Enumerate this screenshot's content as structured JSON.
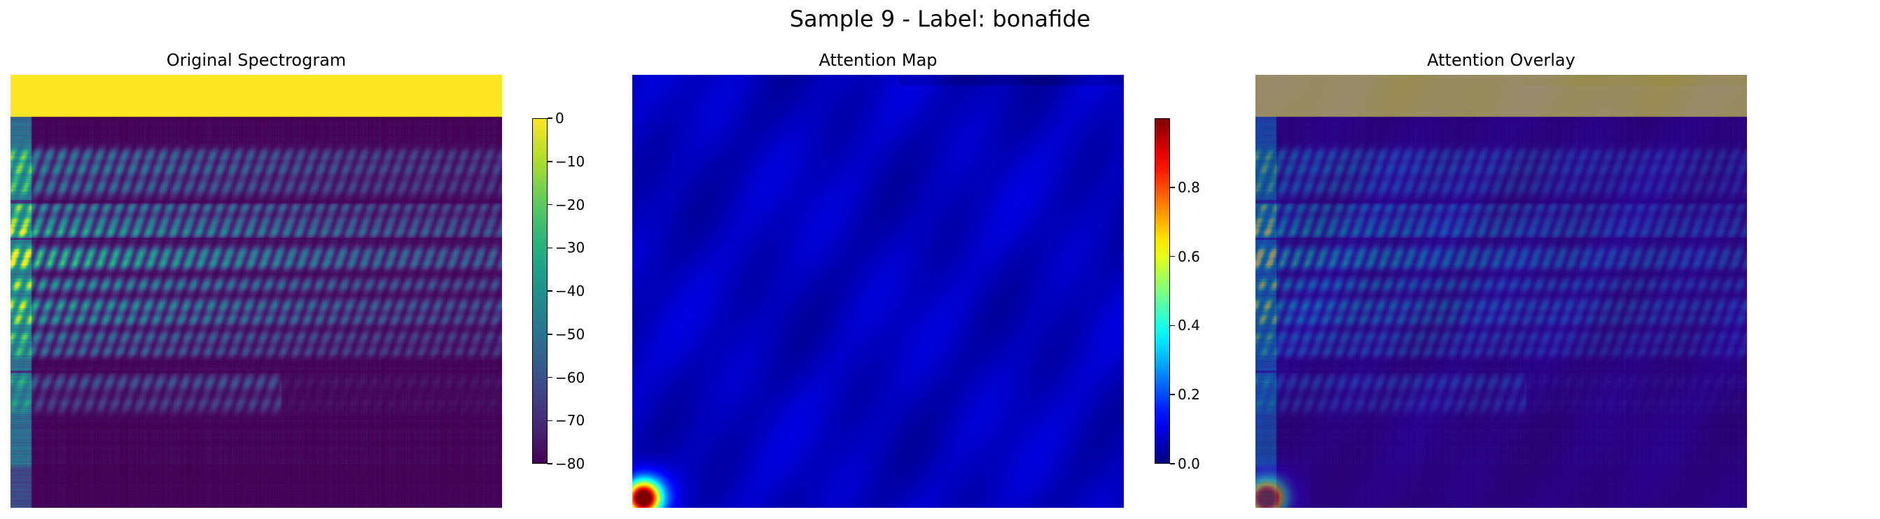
{
  "suptitle": "Sample 9 - Label: bonafide",
  "chart_data": [
    {
      "type": "heatmap",
      "title": "Original Spectrogram",
      "colormap": "viridis",
      "axes": "off",
      "colorbar": {
        "range": [
          -80,
          0
        ],
        "ticks": [
          0,
          -10,
          -20,
          -30,
          -40,
          -50,
          -60,
          -70,
          -80
        ],
        "tick_labels": [
          "0",
          "−10",
          "−20",
          "−30",
          "−40",
          "−50",
          "−60",
          "−70",
          "−80"
        ]
      }
    },
    {
      "type": "heatmap",
      "title": "Attention Map",
      "colormap": "jet",
      "axes": "off",
      "colorbar": {
        "range": [
          0,
          1
        ],
        "ticks": [
          0.0,
          0.2,
          0.4,
          0.6,
          0.8
        ],
        "tick_labels": [
          "0.0",
          "0.2",
          "0.4",
          "0.6",
          "0.8"
        ]
      }
    },
    {
      "type": "heatmap",
      "title": "Attention Overlay",
      "colormap": "viridis + jet overlay",
      "axes": "off"
    }
  ]
}
